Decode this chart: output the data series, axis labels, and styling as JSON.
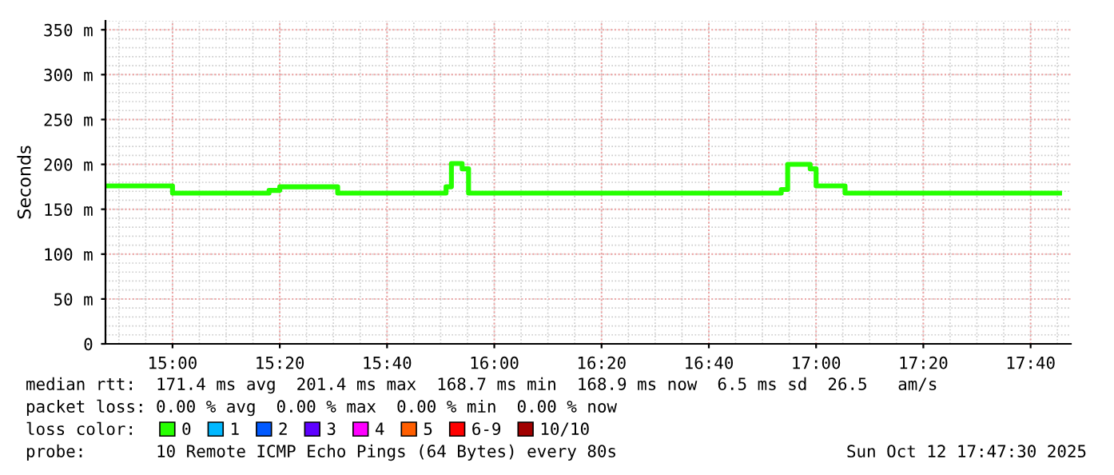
{
  "chart_data": {
    "type": "step",
    "ylabel": "Seconds",
    "xlim": [
      14.7917,
      17.7917
    ],
    "xticks": [
      {
        "value": 15.0,
        "label": "15:00"
      },
      {
        "value": 15.3333,
        "label": "15:20"
      },
      {
        "value": 15.6667,
        "label": "15:40"
      },
      {
        "value": 16.0,
        "label": "16:00"
      },
      {
        "value": 16.3333,
        "label": "16:20"
      },
      {
        "value": 16.6667,
        "label": "16:40"
      },
      {
        "value": 17.0,
        "label": "17:00"
      },
      {
        "value": 17.3333,
        "label": "17:20"
      },
      {
        "value": 17.6667,
        "label": "17:40"
      }
    ],
    "ylim": [
      0,
      360
    ],
    "yticks": [
      0,
      {
        "value": 50,
        "label": "50 m"
      },
      {
        "value": 100,
        "label": "100 m"
      },
      {
        "value": 150,
        "label": "150 m"
      },
      {
        "value": 200,
        "label": "200 m"
      },
      {
        "value": 250,
        "label": "250 m"
      },
      {
        "value": 300,
        "label": "300 m"
      },
      {
        "value": 350,
        "label": "350 m"
      }
    ],
    "grid": true,
    "legend": "bottom",
    "legend_title": "loss color:",
    "series": [
      {
        "name": "0",
        "color": "#26ff00",
        "x": [
          14.7917,
          15.0,
          15.3,
          15.3333,
          15.5133,
          15.85,
          15.8667,
          15.9,
          15.92,
          16.8917,
          16.9117,
          16.9817,
          17.0,
          17.09,
          17.7567
        ],
        "values": [
          176,
          168,
          171,
          175,
          168,
          175,
          201,
          195,
          168,
          172,
          200,
          195,
          176,
          168,
          168
        ]
      },
      {
        "name": "1",
        "color": "#00b8ff"
      },
      {
        "name": "2",
        "color": "#0059ff"
      },
      {
        "name": "3",
        "color": "#5e00ff"
      },
      {
        "name": "4",
        "color": "#ff00ff"
      },
      {
        "name": "5",
        "color": "#ff5e00"
      },
      {
        "name": "6-9",
        "color": "#ff0000"
      },
      {
        "name": "10/10",
        "color": "#a10000"
      }
    ],
    "annotations": [
      "median rtt:  171.4 ms avg  201.4 ms max  168.7 ms min  168.9 ms now  6.5 ms sd  26.5   am/s",
      "packet loss: 0.00 % avg  0.00 % max  0.00 % min  0.00 % now",
      "probe:       10 Remote ICMP Echo Pings (64 Bytes) every 80s",
      "Sun Oct 12 17:47:30 2025"
    ]
  }
}
